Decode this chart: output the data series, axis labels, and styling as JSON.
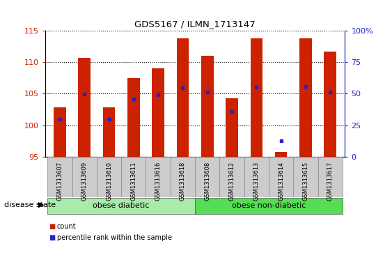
{
  "title": "GDS5167 / ILMN_1713147",
  "samples": [
    "GSM1313607",
    "GSM1313609",
    "GSM1313610",
    "GSM1313611",
    "GSM1313616",
    "GSM1313618",
    "GSM1313608",
    "GSM1313612",
    "GSM1313613",
    "GSM1313614",
    "GSM1313615",
    "GSM1313617"
  ],
  "count_values": [
    102.8,
    110.6,
    102.8,
    107.5,
    109.0,
    113.7,
    111.0,
    104.3,
    113.7,
    95.8,
    113.7,
    111.7
  ],
  "percentile_values": [
    101.0,
    104.9,
    101.0,
    104.1,
    104.8,
    105.9,
    105.2,
    102.2,
    106.0,
    97.5,
    106.1,
    105.3
  ],
  "ylim_left": [
    95,
    115
  ],
  "ylim_right": [
    0,
    100
  ],
  "right_ticks": [
    0,
    25,
    50,
    75,
    100
  ],
  "right_tick_labels": [
    "0",
    "25",
    "50",
    "75",
    "100%"
  ],
  "left_ticks": [
    95,
    100,
    105,
    110,
    115
  ],
  "bar_color": "#cc2200",
  "dot_color": "#2222cc",
  "bar_width": 0.5,
  "groups": [
    {
      "label": "obese diabetic",
      "start": 0,
      "end": 5,
      "color": "#aaeaaa"
    },
    {
      "label": "obese non-diabetic",
      "start": 6,
      "end": 11,
      "color": "#55dd55"
    }
  ],
  "disease_label": "disease state",
  "legend_count_label": "count",
  "legend_percentile_label": "percentile rank within the sample",
  "tick_color_left": "#cc2200",
  "tick_color_right": "#2222cc",
  "xtick_bg": "#cccccc",
  "xtick_border": "#999999",
  "plot_bg_color": "#ffffff"
}
